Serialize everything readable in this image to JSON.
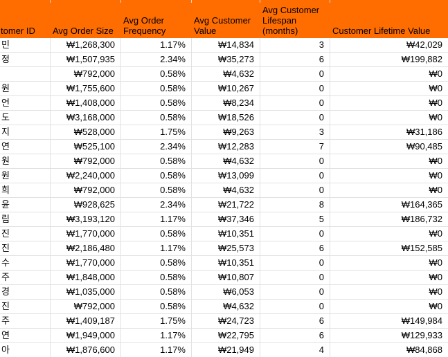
{
  "app": {
    "type": "spreadsheet-table",
    "description": "Customer lifetime value table, left column cropped mid-cell"
  },
  "colors": {
    "header_bg": "#FF6D01",
    "header_text": "#000000",
    "gridline": "#E1E1E1",
    "cell_text": "#000000",
    "row_bg": "#FFFFFF"
  },
  "table": {
    "headers": [
      "tomer ID",
      "Avg Order Size",
      "Avg Order Frequency",
      "Avg Customer Value",
      "Avg Customer Lifespan (months)",
      "Customer Lifetime Value"
    ],
    "rows": [
      [
        "민",
        "₩1,268,300",
        "1.17%",
        "₩14,834",
        "3",
        "₩42,029"
      ],
      [
        "정",
        "₩1,507,935",
        "2.34%",
        "₩35,273",
        "6",
        "₩199,882"
      ],
      [
        "",
        "₩792,000",
        "0.58%",
        "₩4,632",
        "0",
        "₩0"
      ],
      [
        "원",
        "₩1,755,600",
        "0.58%",
        "₩10,267",
        "0",
        "₩0"
      ],
      [
        "언",
        "₩1,408,000",
        "0.58%",
        "₩8,234",
        "0",
        "₩0"
      ],
      [
        "도",
        "₩3,168,000",
        "0.58%",
        "₩18,526",
        "0",
        "₩0"
      ],
      [
        "지",
        "₩528,000",
        "1.75%",
        "₩9,263",
        "3",
        "₩31,186"
      ],
      [
        "연",
        "₩525,100",
        "2.34%",
        "₩12,283",
        "7",
        "₩90,485"
      ],
      [
        "원",
        "₩792,000",
        "0.58%",
        "₩4,632",
        "0",
        "₩0"
      ],
      [
        "원",
        "₩2,240,000",
        "0.58%",
        "₩13,099",
        "0",
        "₩0"
      ],
      [
        "희",
        "₩792,000",
        "0.58%",
        "₩4,632",
        "0",
        "₩0"
      ],
      [
        "윤",
        "₩928,625",
        "2.34%",
        "₩21,722",
        "8",
        "₩164,365"
      ],
      [
        "림",
        "₩3,193,120",
        "1.17%",
        "₩37,346",
        "5",
        "₩186,732"
      ],
      [
        "진",
        "₩1,770,000",
        "0.58%",
        "₩10,351",
        "0",
        "₩0"
      ],
      [
        "진",
        "₩2,186,480",
        "1.17%",
        "₩25,573",
        "6",
        "₩152,585"
      ],
      [
        "수",
        "₩1,770,000",
        "0.58%",
        "₩10,351",
        "0",
        "₩0"
      ],
      [
        "주",
        "₩1,848,000",
        "0.58%",
        "₩10,807",
        "0",
        "₩0"
      ],
      [
        "경",
        "₩1,035,000",
        "0.58%",
        "₩6,053",
        "0",
        "₩0"
      ],
      [
        "진",
        "₩792,000",
        "0.58%",
        "₩4,632",
        "0",
        "₩0"
      ],
      [
        "주",
        "₩1,409,187",
        "1.75%",
        "₩24,723",
        "6",
        "₩149,984"
      ],
      [
        "연",
        "₩1,949,000",
        "1.17%",
        "₩22,795",
        "6",
        "₩129,933"
      ],
      [
        "아",
        "₩1,876,600",
        "1.17%",
        "₩21,949",
        "4",
        "₩84,868"
      ]
    ]
  }
}
